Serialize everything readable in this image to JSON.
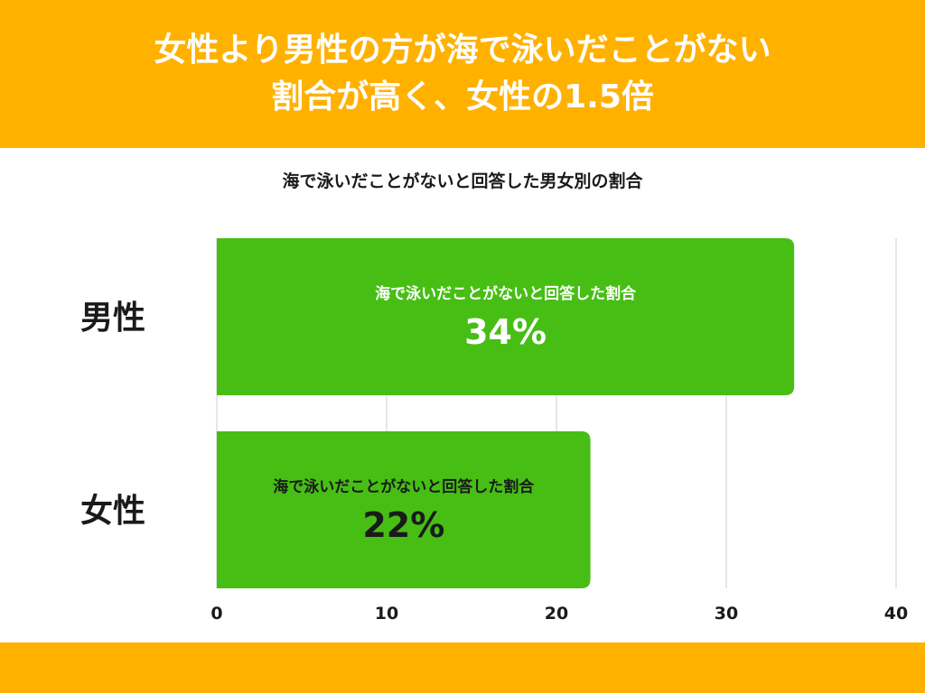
{
  "header": {
    "line1": "女性より男性の方が海で泳いだことがない",
    "line2": "割合が高く、女性の1.5倍"
  },
  "colors": {
    "header_bg": "#FFB100",
    "bar": "#47BE14",
    "grid": "#cccccc"
  },
  "chart_data": {
    "type": "bar",
    "orientation": "horizontal",
    "title": "海で泳いだことがないと回答した男女別の割合",
    "categories": [
      "男性",
      "女性"
    ],
    "values": [
      34,
      22
    ],
    "bar_labels": [
      "海で泳いだことがないと回答した割合",
      "海で泳いだことがないと回答した割合"
    ],
    "value_labels": [
      "34%",
      "22%"
    ],
    "value_label_colors": [
      "#ffffff",
      "#1a1a1a"
    ],
    "xlim": [
      0,
      40
    ],
    "x_ticks": [
      0,
      10,
      20,
      30,
      40
    ],
    "grid": true
  }
}
